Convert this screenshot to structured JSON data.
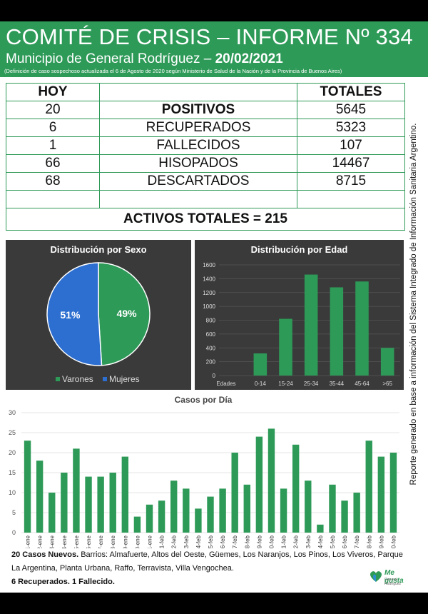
{
  "header": {
    "title": "COMITÉ DE CRISIS – INFORME Nº 334",
    "subtitle_prefix": "Municipio de General Rodríguez – ",
    "date": "20/02/2021",
    "note": "(Definición de caso sospechoso actualizada el 6 de Agosto de 2020 según Ministerio de Salud de la Nación y de la Provincia de Buenos Aires)"
  },
  "table": {
    "col_hoy": "HOY",
    "col_totales": "TOTALES",
    "rows": [
      {
        "hoy": "20",
        "label": "POSITIVOS",
        "total": "5645"
      },
      {
        "hoy": "6",
        "label": "RECUPERADOS",
        "total": "5323"
      },
      {
        "hoy": "1",
        "label": "FALLECIDOS",
        "total": "107"
      },
      {
        "hoy": "66",
        "label": "HISOPADOS",
        "total": "14467"
      },
      {
        "hoy": "68",
        "label": "DESCARTADOS",
        "total": "8715"
      }
    ],
    "activos": "ACTIVOS TOTALES = 215"
  },
  "side_note": "Reporte generado en base a información del Sistema Integrado de Información Sanitaria Argentino.",
  "chart_data": [
    {
      "type": "pie",
      "title": "Distribución por Sexo",
      "labels": [
        "Varones",
        "Mujeres"
      ],
      "values": [
        49,
        51
      ],
      "value_labels": [
        "49%",
        "51%"
      ],
      "colors": [
        "#2e9a58",
        "#2d6fd1"
      ],
      "legend": "bottom"
    },
    {
      "type": "bar",
      "title": "Distribución por Edad",
      "xlabel": "Edades",
      "categories": [
        "0-14",
        "15-24",
        "25-34",
        "35-44",
        "45-64",
        ">65"
      ],
      "values": [
        320,
        820,
        1460,
        1275,
        1360,
        400
      ],
      "ylim": [
        0,
        1600
      ],
      "yticks": [
        0,
        200,
        400,
        600,
        800,
        1000,
        1200,
        1400,
        1600
      ],
      "color": "#2e9a58",
      "grid": true
    },
    {
      "type": "bar",
      "title": "Casos por Día",
      "categories": [
        "21-ene",
        "22-ene",
        "23-ene",
        "24-ene",
        "25-ene",
        "26-ene",
        "27-ene",
        "28-ene",
        "29-ene",
        "30-ene",
        "31-ene",
        "1-feb",
        "2-feb",
        "3-feb",
        "4-feb",
        "5-feb",
        "6-feb",
        "7-feb",
        "8-feb",
        "9-feb",
        "10-feb",
        "11-feb",
        "12-feb",
        "13-feb",
        "14-feb",
        "15-feb",
        "16-feb",
        "17-feb",
        "18-feb",
        "19-feb",
        "20-feb"
      ],
      "values": [
        23,
        18,
        10,
        15,
        21,
        14,
        14,
        15,
        19,
        4,
        7,
        8,
        13,
        11,
        6,
        9,
        11,
        20,
        12,
        24,
        26,
        11,
        22,
        13,
        2,
        12,
        8,
        10,
        23,
        19,
        20
      ],
      "ylim": [
        0,
        30
      ],
      "yticks": [
        0,
        5,
        10,
        15,
        20,
        25,
        30
      ],
      "color": "#2e9a58",
      "grid": true
    }
  ],
  "footer": {
    "nuevos_bold": "20 Casos Nuevos.",
    "barrios": " Barrios: Almafuerte, Altos del Oeste, Güemes, Los Naranjos, Los Pinos, Los Viveros, Parque La Argentina, Planta Urbana, Raffo, Terravista, Villa Vengochea.",
    "line2": "6 Recuperados. 1 Fallecido."
  },
  "logo": {
    "text": "Me gusta",
    "sub": "General Rodríguez"
  }
}
